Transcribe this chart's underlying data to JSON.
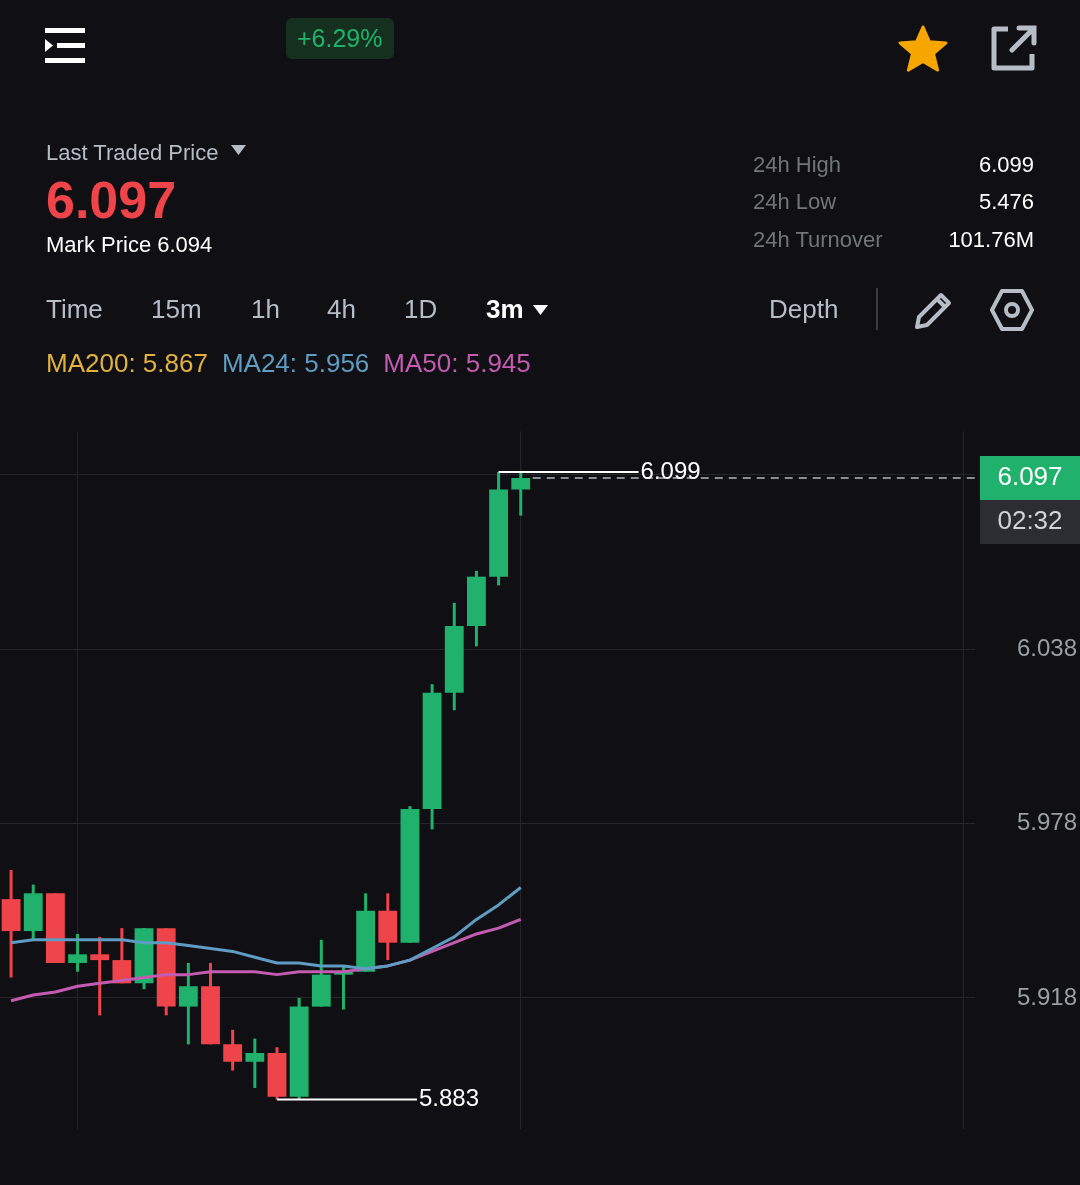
{
  "chart_data": {
    "type": "candlestick",
    "categories": [
      null,
      null,
      null,
      null,
      null,
      null,
      null,
      null,
      null,
      null,
      null,
      null,
      null,
      null,
      null,
      null,
      null,
      null,
      null,
      null,
      null,
      null,
      null,
      null,
      null,
      null,
      null,
      null,
      null,
      null,
      null,
      null,
      null,
      null,
      null,
      null,
      null,
      null,
      null,
      null,
      null,
      null,
      null,
      null
    ],
    "ohlc": [
      [
        5.952,
        5.962,
        5.925,
        5.941
      ],
      [
        5.941,
        5.957,
        5.938,
        5.954
      ],
      [
        5.954,
        5.954,
        5.93,
        5.93
      ],
      [
        5.93,
        5.94,
        5.927,
        5.933
      ],
      [
        5.933,
        5.939,
        5.912,
        5.931
      ],
      [
        5.931,
        5.942,
        5.923,
        5.923
      ],
      [
        5.923,
        5.942,
        5.921,
        5.942
      ],
      [
        5.942,
        5.942,
        5.912,
        5.915
      ],
      [
        5.915,
        5.93,
        5.902,
        5.922
      ],
      [
        5.922,
        5.93,
        5.902,
        5.902
      ],
      [
        5.902,
        5.907,
        5.893,
        5.896
      ],
      [
        5.896,
        5.904,
        5.887,
        5.899
      ],
      [
        5.899,
        5.901,
        5.883,
        5.884
      ],
      [
        5.884,
        5.918,
        5.883,
        5.915
      ],
      [
        5.915,
        5.938,
        5.915,
        5.926
      ],
      [
        5.926,
        5.929,
        5.914,
        5.927
      ],
      [
        5.927,
        5.954,
        5.927,
        5.948
      ],
      [
        5.948,
        5.954,
        5.931,
        5.937
      ],
      [
        5.937,
        5.984,
        5.937,
        5.983
      ],
      [
        5.983,
        6.026,
        5.976,
        6.023
      ],
      [
        6.023,
        6.054,
        6.017,
        6.046
      ],
      [
        6.046,
        6.065,
        6.039,
        6.063
      ],
      [
        6.063,
        6.099,
        6.06,
        6.093
      ],
      [
        6.093,
        6.099,
        6.084,
        6.097
      ],
      null,
      null,
      null,
      null,
      null,
      null,
      null,
      null,
      null,
      null,
      null,
      null,
      null,
      null,
      null,
      null,
      null,
      null,
      null,
      null
    ],
    "colors": [
      "#ef454a",
      "#20b26c",
      "#ef454a",
      "#20b26c",
      "#ef454a",
      "#ef454a",
      "#20b26c",
      "#ef454a",
      "#20b26c",
      "#ef454a",
      "#ef454a",
      "#20b26c",
      "#ef454a",
      "#20b26c",
      "#20b26c",
      "#20b26c",
      "#20b26c",
      "#ef454a",
      "#20b26c",
      "#20b26c",
      "#20b26c",
      "#20b26c",
      "#20b26c",
      "#20b26c",
      null,
      null,
      null,
      null,
      null,
      null,
      null,
      null,
      null,
      null,
      null,
      null,
      null,
      null,
      null,
      null,
      null,
      null,
      null,
      null
    ],
    "series": [
      {
        "name": "MA24: 5.956",
        "type": "line",
        "color": "#5f9cc2",
        "values": [
          5.937,
          5.938,
          5.938,
          5.938,
          5.938,
          5.938,
          5.937,
          5.937,
          5.936,
          5.935,
          5.934,
          5.932,
          5.93,
          5.93,
          5.929,
          5.929,
          5.928,
          5.929,
          5.931,
          5.935,
          5.939,
          5.945,
          5.95,
          5.956,
          null,
          null,
          null,
          null,
          null,
          null,
          null,
          null,
          null,
          null,
          null,
          null,
          null,
          null,
          null,
          null,
          null,
          null,
          null,
          null
        ]
      },
      {
        "name": "MA50: 5.945",
        "type": "line",
        "color": "#c35bb1",
        "values": [
          5.917,
          5.919,
          5.92,
          5.922,
          5.923,
          5.924,
          5.925,
          5.926,
          5.926,
          5.927,
          5.927,
          5.927,
          5.926,
          5.927,
          5.927,
          5.927,
          5.928,
          5.929,
          5.931,
          5.934,
          5.937,
          5.94,
          5.942,
          5.945,
          null,
          null,
          null,
          null,
          null,
          null,
          null,
          null,
          null,
          null,
          null,
          null,
          null,
          null,
          null,
          null,
          null,
          null,
          null,
          null
        ]
      }
    ],
    "ylim": [
      5.873,
      6.113
    ],
    "yticks": [
      5.918,
      5.978,
      6.038,
      {
        "value": 6.098,
        "label": null
      }
    ],
    "grid": true,
    "tick_labels": "y",
    "legend": "top",
    "line_style": "solid",
    "marker": "none",
    "ref_lines": [
      {
        "axis": "y",
        "value": 6.097,
        "label": "6.097",
        "color": "#8a8d93",
        "line_style": "dashed"
      }
    ],
    "annotations": [
      "+6.29%",
      "Last Traded Price",
      "6.097",
      "Mark Price 6.094",
      "24h High",
      "6.099",
      "24h Low",
      "5.476",
      "24h Turnover",
      "101.76M",
      "Time",
      "15m",
      "1h",
      "4h",
      "1D",
      "3m",
      "Depth",
      "MA200: 5.867",
      "02:32",
      "6.099",
      "5.883"
    ]
  }
}
